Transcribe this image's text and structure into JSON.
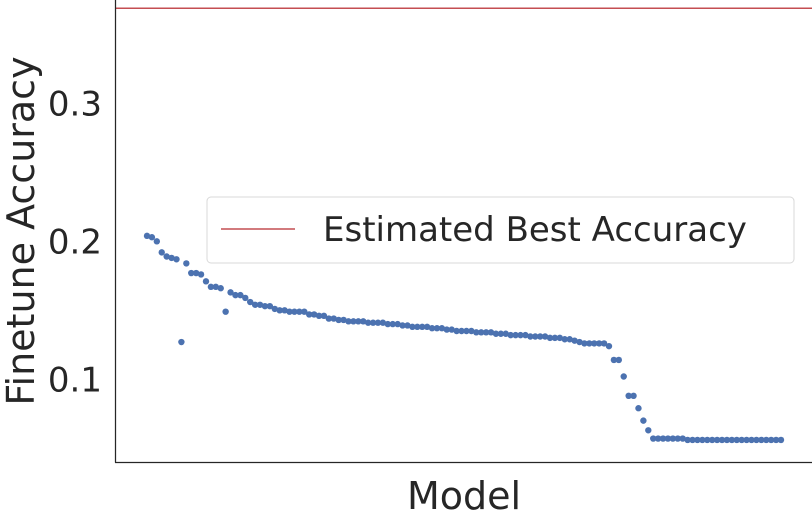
{
  "chart_data": {
    "type": "scatter",
    "title": "",
    "xlabel": "Model",
    "ylabel": "Finetune Accuracy",
    "ylim": [
      0.04,
      0.375
    ],
    "yticks": [
      0.1,
      0.2,
      0.3
    ],
    "ytick_labels": [
      "0.1",
      "0.2",
      "0.3"
    ],
    "xticks_visible": false,
    "grid": false,
    "legend": {
      "placement": "center-right",
      "entries": [
        "Estimated Best Accuracy"
      ]
    },
    "reference_line": {
      "name": "Estimated Best Accuracy",
      "y": 0.369,
      "color": "#c44e52"
    },
    "series": [
      {
        "color": "#4c72b0",
        "x": [
          1,
          2,
          3,
          4,
          5,
          6,
          7,
          8,
          9,
          10,
          11,
          12,
          13,
          14,
          15,
          16,
          17,
          18,
          19,
          20,
          21,
          22,
          23,
          24,
          25,
          26,
          27,
          28,
          29,
          30,
          31,
          32,
          33,
          34,
          35,
          36,
          37,
          38,
          39,
          40,
          41,
          42,
          43,
          44,
          45,
          46,
          47,
          48,
          49,
          50,
          51,
          52,
          53,
          54,
          55,
          56,
          57,
          58,
          59,
          60,
          61,
          62,
          63,
          64,
          65,
          66,
          67,
          68,
          69,
          70,
          71,
          72,
          73,
          74,
          75,
          76,
          77,
          78,
          79,
          80,
          81,
          82,
          83,
          84,
          85,
          86,
          87,
          88,
          89,
          90,
          91,
          92,
          93,
          94,
          95,
          96,
          97,
          98,
          99,
          100,
          101,
          102,
          103,
          104,
          105,
          106,
          107,
          108,
          109,
          110,
          111,
          112,
          113,
          114,
          115,
          116,
          117,
          118,
          119,
          120,
          121,
          122,
          123,
          124,
          125,
          126,
          127,
          128,
          129,
          130
        ],
        "values": [
          0.204,
          0.203,
          0.2,
          0.192,
          0.189,
          0.188,
          0.187,
          0.127,
          0.184,
          0.177,
          0.177,
          0.176,
          0.171,
          0.167,
          0.167,
          0.166,
          0.149,
          0.163,
          0.161,
          0.161,
          0.159,
          0.156,
          0.154,
          0.154,
          0.153,
          0.153,
          0.151,
          0.15,
          0.15,
          0.149,
          0.149,
          0.149,
          0.149,
          0.147,
          0.147,
          0.146,
          0.146,
          0.144,
          0.144,
          0.143,
          0.143,
          0.142,
          0.142,
          0.142,
          0.142,
          0.141,
          0.141,
          0.141,
          0.141,
          0.14,
          0.14,
          0.14,
          0.139,
          0.139,
          0.138,
          0.138,
          0.138,
          0.138,
          0.137,
          0.137,
          0.137,
          0.136,
          0.136,
          0.135,
          0.135,
          0.135,
          0.135,
          0.134,
          0.134,
          0.134,
          0.134,
          0.133,
          0.133,
          0.133,
          0.132,
          0.132,
          0.132,
          0.132,
          0.131,
          0.131,
          0.131,
          0.131,
          0.13,
          0.13,
          0.13,
          0.129,
          0.129,
          0.128,
          0.127,
          0.126,
          0.126,
          0.126,
          0.126,
          0.126,
          0.124,
          0.114,
          0.114,
          0.102,
          0.088,
          0.088,
          0.079,
          0.07,
          0.063,
          0.057,
          0.057,
          0.057,
          0.057,
          0.057,
          0.057,
          0.057,
          0.056,
          0.056,
          0.056,
          0.056,
          0.056,
          0.056,
          0.056,
          0.056,
          0.056,
          0.056,
          0.056,
          0.056,
          0.056,
          0.056,
          0.056,
          0.056,
          0.056,
          0.056,
          0.056,
          0.056
        ]
      }
    ]
  }
}
